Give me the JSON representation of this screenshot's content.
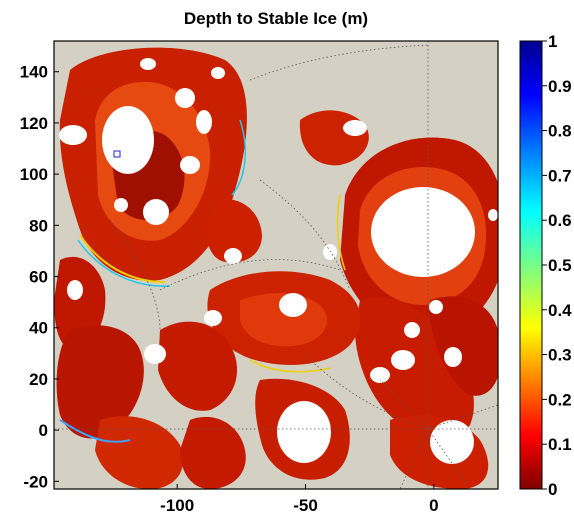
{
  "chart_data": {
    "type": "heatmap",
    "title": "Depth to Stable Ice (m)",
    "xlabel": "",
    "ylabel": "",
    "xlim": [
      -148,
      25
    ],
    "ylim": [
      -23,
      152
    ],
    "x_ticks": [
      "-100",
      "-50",
      "0"
    ],
    "y_ticks": [
      "-20",
      "0",
      "20",
      "40",
      "60",
      "80",
      "100",
      "120",
      "140"
    ],
    "colorbar": {
      "range": [
        0,
        1
      ],
      "ticks": [
        "0",
        "0.1",
        "0.2",
        "0.3",
        "0.4",
        "0.5",
        "0.6",
        "0.7",
        "0.8",
        "0.9",
        "1"
      ],
      "colormap": [
        "#800000",
        "#ff0000",
        "#ffff00",
        "#00ffff",
        "#0000ff",
        "#00008f"
      ]
    },
    "background_color": "#d4d0c4",
    "no_data_color": "#ffffff",
    "grid": true
  }
}
